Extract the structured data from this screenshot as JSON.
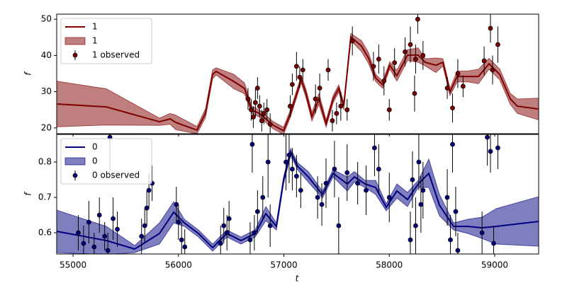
{
  "chart_data": [
    {
      "type": "line",
      "ylabel": "f",
      "xlim": [
        54845,
        59417
      ],
      "ylim": [
        18.4,
        51.4
      ],
      "yticks": [
        20,
        30,
        40,
        50
      ],
      "legend": "upper left",
      "x": [
        54845,
        55316,
        55820,
        55921,
        55975,
        56176,
        56257,
        56324,
        56358,
        56526,
        56627,
        56694,
        56761,
        56829,
        56896,
        56997,
        57064,
        57165,
        57212,
        57266,
        57333,
        57401,
        57468,
        57521,
        57568,
        57635,
        57736,
        57803,
        57871,
        57938,
        58005,
        58072,
        58173,
        58274,
        58341,
        58442,
        58509,
        58576,
        58644,
        58745,
        58846,
        58946,
        59047,
        59148,
        59215,
        59417
      ],
      "series": [
        {
          "name": "1",
          "color": "#800000",
          "values": [
            26.6,
            25.8,
            21.7,
            22.5,
            21.5,
            19.4,
            24.1,
            34.8,
            35.6,
            32.8,
            30.9,
            25.0,
            24.1,
            22.5,
            20.8,
            19.2,
            24.1,
            33.4,
            29.3,
            23.1,
            28.0,
            21.2,
            28.0,
            30.9,
            26.0,
            45.1,
            42.6,
            39.3,
            33.8,
            31.9,
            37.3,
            34.4,
            40.1,
            40.1,
            38.1,
            37.3,
            38.1,
            29.9,
            34.2,
            34.2,
            34.2,
            37.7,
            34.8,
            28.0,
            26.0,
            25.2
          ]
        }
      ],
      "band": {
        "name": "1",
        "color": "#800000",
        "lower": [
          20.3,
          20.8,
          20.7,
          21.0,
          19.5,
          18.4,
          22.9,
          33.6,
          34.6,
          30.8,
          29.4,
          24.0,
          23.1,
          21.5,
          19.8,
          18.2,
          23.1,
          32.4,
          28.1,
          21.9,
          26.5,
          20.2,
          27.0,
          29.9,
          25.0,
          44.1,
          41.1,
          37.8,
          32.8,
          30.9,
          36.3,
          32.9,
          38.6,
          38.1,
          37.1,
          35.3,
          37.1,
          28.9,
          32.7,
          32.7,
          32.2,
          36.2,
          33.3,
          26.5,
          24.0,
          22.2
        ],
        "upper": [
          32.9,
          30.8,
          22.7,
          24.0,
          23.5,
          20.4,
          25.3,
          36.0,
          36.6,
          34.8,
          32.4,
          26.0,
          25.1,
          23.5,
          21.8,
          20.2,
          25.1,
          34.4,
          30.5,
          24.3,
          29.5,
          22.2,
          29.0,
          31.9,
          27.0,
          46.1,
          44.1,
          40.8,
          34.8,
          32.9,
          38.3,
          35.9,
          41.6,
          42.1,
          39.1,
          39.3,
          39.1,
          30.9,
          35.7,
          35.7,
          36.2,
          39.2,
          36.3,
          29.5,
          28.0,
          28.2
        ]
      },
      "observed": {
        "name": "1 observed",
        "color": "#800000",
        "x": [
          56660,
          56690,
          56710,
          56730,
          56750,
          56770,
          56790,
          56810,
          56840,
          56870,
          57060,
          57080,
          57120,
          57150,
          57180,
          57300,
          57340,
          57420,
          57460,
          57500,
          57540,
          57600,
          57650,
          57850,
          57900,
          57950,
          58000,
          58050,
          58150,
          58200,
          58240,
          58250,
          58270,
          58320,
          58550,
          58600,
          58650,
          58700,
          58900,
          58960,
          58980,
          59030
        ],
        "values": [
          28.0,
          25.0,
          23.0,
          27.0,
          31.0,
          26.0,
          22.0,
          24.0,
          25.0,
          21.0,
          26.0,
          32.0,
          37.0,
          34.0,
          36.0,
          28.0,
          31.0,
          36.0,
          22.0,
          24.0,
          26.0,
          25.0,
          44.0,
          37.0,
          39.0,
          33.0,
          25.0,
          38.0,
          41.0,
          43.0,
          29.5,
          39.0,
          50.0,
          40.0,
          31.0,
          25.5,
          35.0,
          31.5,
          38.5,
          47.5,
          36.0,
          43.0
        ],
        "errors": [
          3,
          3,
          3,
          4,
          3,
          3,
          3,
          3,
          3,
          3,
          3,
          3,
          4,
          3,
          3,
          4,
          4,
          3,
          3,
          3,
          4,
          3,
          4,
          4,
          4,
          4,
          3,
          4,
          4,
          5,
          5,
          4,
          4,
          4,
          3,
          4,
          4,
          3,
          4,
          4,
          4,
          5
        ]
      }
    },
    {
      "type": "line",
      "ylabel": "f",
      "xlabel": "t",
      "xlim": [
        54845,
        59417
      ],
      "ylim": [
        0.54,
        0.878
      ],
      "yticks": [
        0.6,
        0.7,
        0.8
      ],
      "xticks": [
        55000,
        56000,
        57000,
        58000,
        59000
      ],
      "legend": "upper left",
      "x": [
        54845,
        55316,
        55585,
        55820,
        55955,
        56056,
        56190,
        56324,
        56459,
        56593,
        56728,
        56829,
        56929,
        56997,
        57064,
        57131,
        57232,
        57366,
        57467,
        57602,
        57669,
        57770,
        57871,
        57971,
        58072,
        58173,
        58274,
        58375,
        58476,
        58610,
        58745,
        58879,
        59013,
        59417
      ],
      "series": [
        {
          "name": "0",
          "color": "#000080",
          "values": [
            0.604,
            0.578,
            0.554,
            0.598,
            0.658,
            0.628,
            0.598,
            0.558,
            0.598,
            0.578,
            0.598,
            0.654,
            0.618,
            0.748,
            0.828,
            0.788,
            0.758,
            0.708,
            0.768,
            0.738,
            0.758,
            0.738,
            0.728,
            0.672,
            0.718,
            0.694,
            0.738,
            0.768,
            0.678,
            0.618,
            0.618,
            0.614,
            0.618,
            0.632
          ]
        }
      ],
      "band": {
        "name": "0",
        "color": "#000080",
        "lower": [
          0.544,
          0.538,
          0.544,
          0.568,
          0.628,
          0.618,
          0.588,
          0.548,
          0.588,
          0.568,
          0.588,
          0.634,
          0.608,
          0.738,
          0.818,
          0.778,
          0.743,
          0.698,
          0.758,
          0.718,
          0.743,
          0.728,
          0.708,
          0.662,
          0.698,
          0.674,
          0.728,
          0.728,
          0.648,
          0.608,
          0.598,
          0.584,
          0.568,
          0.562
        ],
        "upper": [
          0.664,
          0.618,
          0.564,
          0.628,
          0.688,
          0.638,
          0.608,
          0.568,
          0.608,
          0.588,
          0.608,
          0.674,
          0.628,
          0.758,
          0.838,
          0.798,
          0.773,
          0.718,
          0.778,
          0.758,
          0.773,
          0.748,
          0.748,
          0.682,
          0.738,
          0.714,
          0.748,
          0.808,
          0.708,
          0.628,
          0.638,
          0.644,
          0.668,
          0.702
        ]
      },
      "observed": {
        "name": "0 observed",
        "color": "#000080",
        "x": [
          55050,
          55100,
          55150,
          55200,
          55250,
          55300,
          55330,
          55350,
          55380,
          55420,
          55650,
          55680,
          55700,
          55720,
          55750,
          55980,
          56000,
          56030,
          56060,
          56400,
          56430,
          56460,
          56480,
          56680,
          56700,
          56720,
          56750,
          56800,
          56850,
          56870,
          57020,
          57050,
          57080,
          57120,
          57160,
          57320,
          57360,
          57400,
          57480,
          57520,
          57600,
          57700,
          57780,
          57860,
          57900,
          58000,
          58200,
          58220,
          58250,
          58280,
          58300,
          58320,
          58550,
          58580,
          58600,
          58630,
          58650,
          58880,
          58930,
          58960,
          58990,
          59030
        ],
        "values": [
          0.6,
          0.57,
          0.63,
          0.56,
          0.65,
          0.59,
          0.55,
          0.87,
          0.64,
          0.61,
          0.59,
          0.62,
          0.67,
          0.72,
          0.74,
          0.68,
          0.63,
          0.58,
          0.56,
          0.57,
          0.62,
          0.6,
          0.64,
          0.58,
          0.85,
          0.6,
          0.66,
          0.7,
          0.8,
          0.62,
          0.8,
          0.82,
          0.78,
          0.76,
          0.72,
          0.7,
          0.68,
          0.74,
          0.78,
          0.62,
          0.77,
          0.74,
          0.72,
          0.84,
          0.78,
          0.7,
          0.58,
          0.75,
          0.62,
          0.8,
          0.68,
          0.72,
          0.7,
          0.58,
          0.85,
          0.66,
          0.55,
          0.6,
          0.87,
          0.83,
          0.57,
          0.84
        ],
        "errors": [
          0.05,
          0.05,
          0.06,
          0.04,
          0.05,
          0.04,
          0.05,
          0.1,
          0.06,
          0.05,
          0.05,
          0.05,
          0.05,
          0.05,
          0.05,
          0.05,
          0.05,
          0.05,
          0.05,
          0.05,
          0.05,
          0.05,
          0.05,
          0.05,
          0.08,
          0.05,
          0.06,
          0.06,
          0.1,
          0.06,
          0.08,
          0.08,
          0.06,
          0.06,
          0.05,
          0.06,
          0.06,
          0.07,
          0.08,
          0.08,
          0.08,
          0.06,
          0.07,
          0.08,
          0.07,
          0.07,
          0.08,
          0.08,
          0.08,
          0.08,
          0.08,
          0.08,
          0.08,
          0.07,
          0.08,
          0.07,
          0.05,
          0.06,
          0.08,
          0.06,
          0.05,
          0.06
        ]
      }
    }
  ]
}
